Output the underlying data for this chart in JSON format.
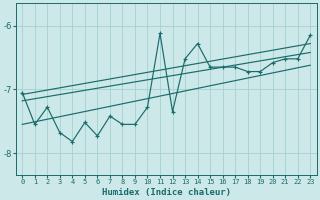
{
  "xlabel": "Humidex (Indice chaleur)",
  "background_color": "#cce8e8",
  "line_color": "#1a6b6b",
  "xlim": [
    -0.5,
    23.5
  ],
  "ylim": [
    -8.35,
    -5.65
  ],
  "yticks": [
    -8,
    -7,
    -6
  ],
  "xtick_labels": [
    "0",
    "1",
    "2",
    "3",
    "4",
    "5",
    "6",
    "7",
    "8",
    "9",
    "10",
    "11",
    "12",
    "13",
    "14",
    "15",
    "16",
    "17",
    "18",
    "19",
    "20",
    "21",
    "22",
    "23"
  ],
  "series_y": [
    -7.05,
    -7.55,
    -7.28,
    -7.68,
    -7.82,
    -7.52,
    -7.73,
    -7.42,
    -7.55,
    -7.55,
    -7.28,
    -6.12,
    -7.35,
    -6.52,
    -6.28,
    -6.65,
    -6.65,
    -6.65,
    -6.72,
    -6.72,
    -6.58,
    -6.52,
    -6.52,
    -6.15
  ],
  "reg_line1": {
    "x": [
      0,
      23
    ],
    "y": [
      -7.08,
      -6.28
    ]
  },
  "reg_line2": {
    "x": [
      0,
      23
    ],
    "y": [
      -7.18,
      -6.42
    ]
  },
  "reg_line3": {
    "x": [
      0,
      23
    ],
    "y": [
      -7.55,
      -6.62
    ]
  }
}
